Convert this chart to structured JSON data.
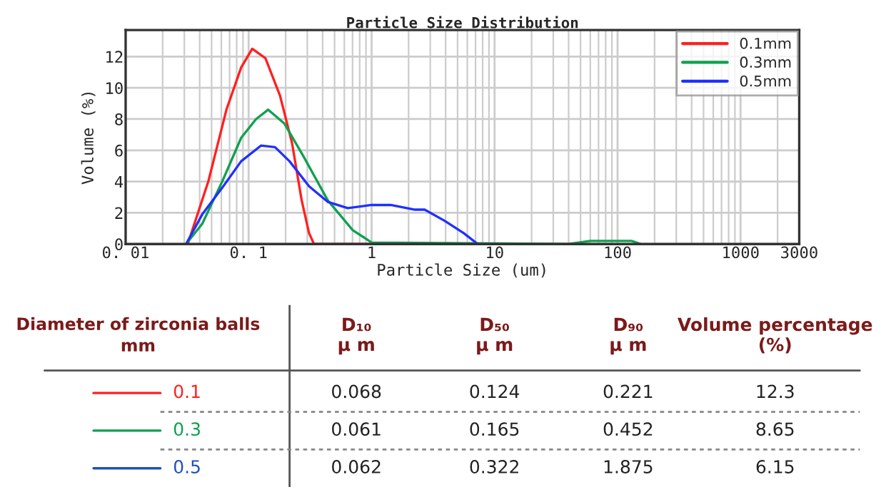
{
  "chart_data": [
    {
      "type": "line",
      "title": "Particle Size Distribution",
      "xlabel": "Particle Size (um)",
      "ylabel": "Volume (%)",
      "log": "x",
      "grid": true,
      "legend": "top right",
      "xlim": [
        0.01,
        3000
      ],
      "xticks": [
        {
          "value": 0.01,
          "label": "0. 01"
        },
        {
          "value": 0.1,
          "label": "0. 1"
        },
        1,
        10,
        100,
        1000,
        3000
      ],
      "ylim": [
        0,
        13.7
      ],
      "yticks": [
        0,
        2,
        4,
        6,
        8,
        10,
        12
      ],
      "series": [
        {
          "name": "0.1mm",
          "color": "#ff2020",
          "x": [
            0.032,
            0.047,
            0.066,
            0.087,
            0.107,
            0.137,
            0.18,
            0.225,
            0.27,
            0.31,
            0.34,
            1.4
          ],
          "values": [
            0,
            4.0,
            8.6,
            11.3,
            12.5,
            11.9,
            9.5,
            6.5,
            2.8,
            0.7,
            0,
            0
          ]
        },
        {
          "name": "0.3mm",
          "color": "#10a050",
          "x": [
            0.031,
            0.042,
            0.061,
            0.087,
            0.115,
            0.144,
            0.196,
            0.28,
            0.44,
            0.7,
            1.0,
            40,
            60,
            80,
            130,
            155
          ],
          "values": [
            0,
            1.3,
            4.0,
            6.8,
            8.0,
            8.6,
            7.7,
            5.6,
            2.8,
            0.9,
            0.1,
            0,
            0.2,
            0.2,
            0.2,
            0
          ]
        },
        {
          "name": "0.5mm",
          "color": "#2030ff",
          "x": [
            0.031,
            0.042,
            0.061,
            0.087,
            0.126,
            0.164,
            0.215,
            0.31,
            0.44,
            0.64,
            1.0,
            1.43,
            2.25,
            2.7,
            3.9,
            5.6,
            7.3
          ],
          "values": [
            0,
            1.9,
            3.6,
            5.3,
            6.3,
            6.2,
            5.3,
            3.7,
            2.7,
            2.3,
            2.5,
            2.5,
            2.2,
            2.2,
            1.5,
            0.7,
            0
          ]
        }
      ]
    },
    {
      "type": "other",
      "legend_title": "Diameter of zirconia balls\nmm",
      "categories": [
        "D₁₀\nμ m",
        "D₅₀\nμ m",
        "D₉₀\nμ m",
        "Volume percentage\n(%)"
      ],
      "data_labels": true,
      "series": [
        {
          "name": "0.1",
          "color": "#ff2020",
          "values": [
            0.068,
            0.124,
            0.221,
            12.3
          ]
        },
        {
          "name": "0.3",
          "color": "#10a050",
          "values": [
            0.061,
            0.165,
            0.452,
            8.65
          ]
        },
        {
          "name": "0.5",
          "color": "#2050c0",
          "values": [
            0.062,
            0.322,
            1.875,
            6.15
          ]
        }
      ]
    }
  ]
}
